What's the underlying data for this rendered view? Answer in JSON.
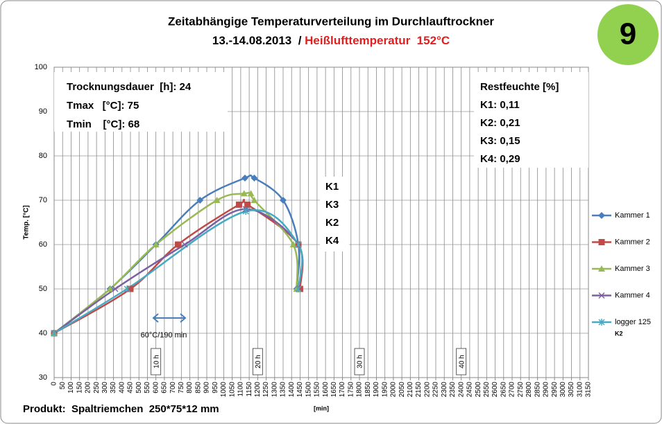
{
  "chart_data": {
    "type": "line",
    "title": "Zeitabhängige Temperaturverteilung im Durchlauftrockner",
    "subtitle_date": "13.-14.08.2013  / ",
    "subtitle_temp": "Heißlufttemperatur  152°C",
    "badge": "9",
    "xlabel": "[min]",
    "ylabel": "Temp. [°C]",
    "footer": "Produkt:  Spaltriemchen  250*75*12 mm",
    "info_left": [
      "Trocknungsdauer  [h]: 24",
      "Tmax   [°C]: 75",
      "Tmin    [°C]: 68"
    ],
    "info_right": [
      "Restfeuchte [%]",
      "K1: 0,11",
      "K2: 0,21",
      "K3: 0,15",
      "K4: 0,29"
    ],
    "order_labels": [
      "K1",
      "K3",
      "K2",
      "K4"
    ],
    "annotation": "60°C/190 min",
    "legend_note": "K2",
    "hour_markers": [
      {
        "x": 600,
        "label": "10 h"
      },
      {
        "x": 1200,
        "label": "20 h"
      },
      {
        "x": 1800,
        "label": "30 h"
      },
      {
        "x": 2400,
        "label": "40 h"
      }
    ],
    "xlim": [
      0,
      3150
    ],
    "ylim": [
      30,
      100
    ],
    "xticks": [
      0,
      50,
      100,
      150,
      200,
      250,
      300,
      350,
      400,
      450,
      500,
      550,
      600,
      650,
      700,
      750,
      800,
      850,
      900,
      950,
      1000,
      1050,
      1100,
      1150,
      1200,
      1250,
      1300,
      1350,
      1400,
      1450,
      1500,
      1550,
      1600,
      1650,
      1700,
      1750,
      1800,
      1850,
      1900,
      1950,
      2000,
      2050,
      2100,
      2150,
      2200,
      2250,
      2300,
      2350,
      2400,
      2450,
      2500,
      2550,
      2600,
      2650,
      2700,
      2750,
      2800,
      2850,
      2900,
      2950,
      3000,
      3050,
      3100,
      3150
    ],
    "yticks": [
      30,
      40,
      50,
      60,
      70,
      80,
      90,
      100
    ],
    "grid": true,
    "legend": "right",
    "series": [
      {
        "name": "Kammer 1",
        "color": "#4a7ebb",
        "marker": "diamond",
        "x": [
          0,
          330,
          600,
          860,
          1125,
          1180,
          1350,
          1440,
          1430
        ],
        "values": [
          40,
          50,
          60,
          70,
          75,
          75,
          70,
          60,
          50
        ]
      },
      {
        "name": "Kammer 2",
        "color": "#be4b48",
        "marker": "square",
        "x": [
          0,
          450,
          730,
          1090,
          1140,
          1440,
          1450
        ],
        "values": [
          40,
          50,
          60,
          69,
          69,
          60,
          50
        ]
      },
      {
        "name": "Kammer 3",
        "color": "#98b954",
        "marker": "triangle",
        "x": [
          0,
          330,
          600,
          960,
          1120,
          1160,
          1180,
          1410,
          1430
        ],
        "values": [
          40,
          50,
          60,
          70,
          71.5,
          71.5,
          70,
          60,
          50
        ]
      },
      {
        "name": "Kammer 4",
        "color": "#7d60a0",
        "marker": "x",
        "x": [
          0,
          360,
          770,
          1130,
          1440,
          1440
        ],
        "values": [
          40,
          50,
          60,
          68,
          60,
          50
        ]
      },
      {
        "name": "logger 125",
        "color": "#46aac5",
        "marker": "star",
        "x": [
          0,
          430,
          1130,
          1440,
          1440
        ],
        "values": [
          40,
          50,
          67.5,
          60,
          50
        ]
      }
    ]
  }
}
